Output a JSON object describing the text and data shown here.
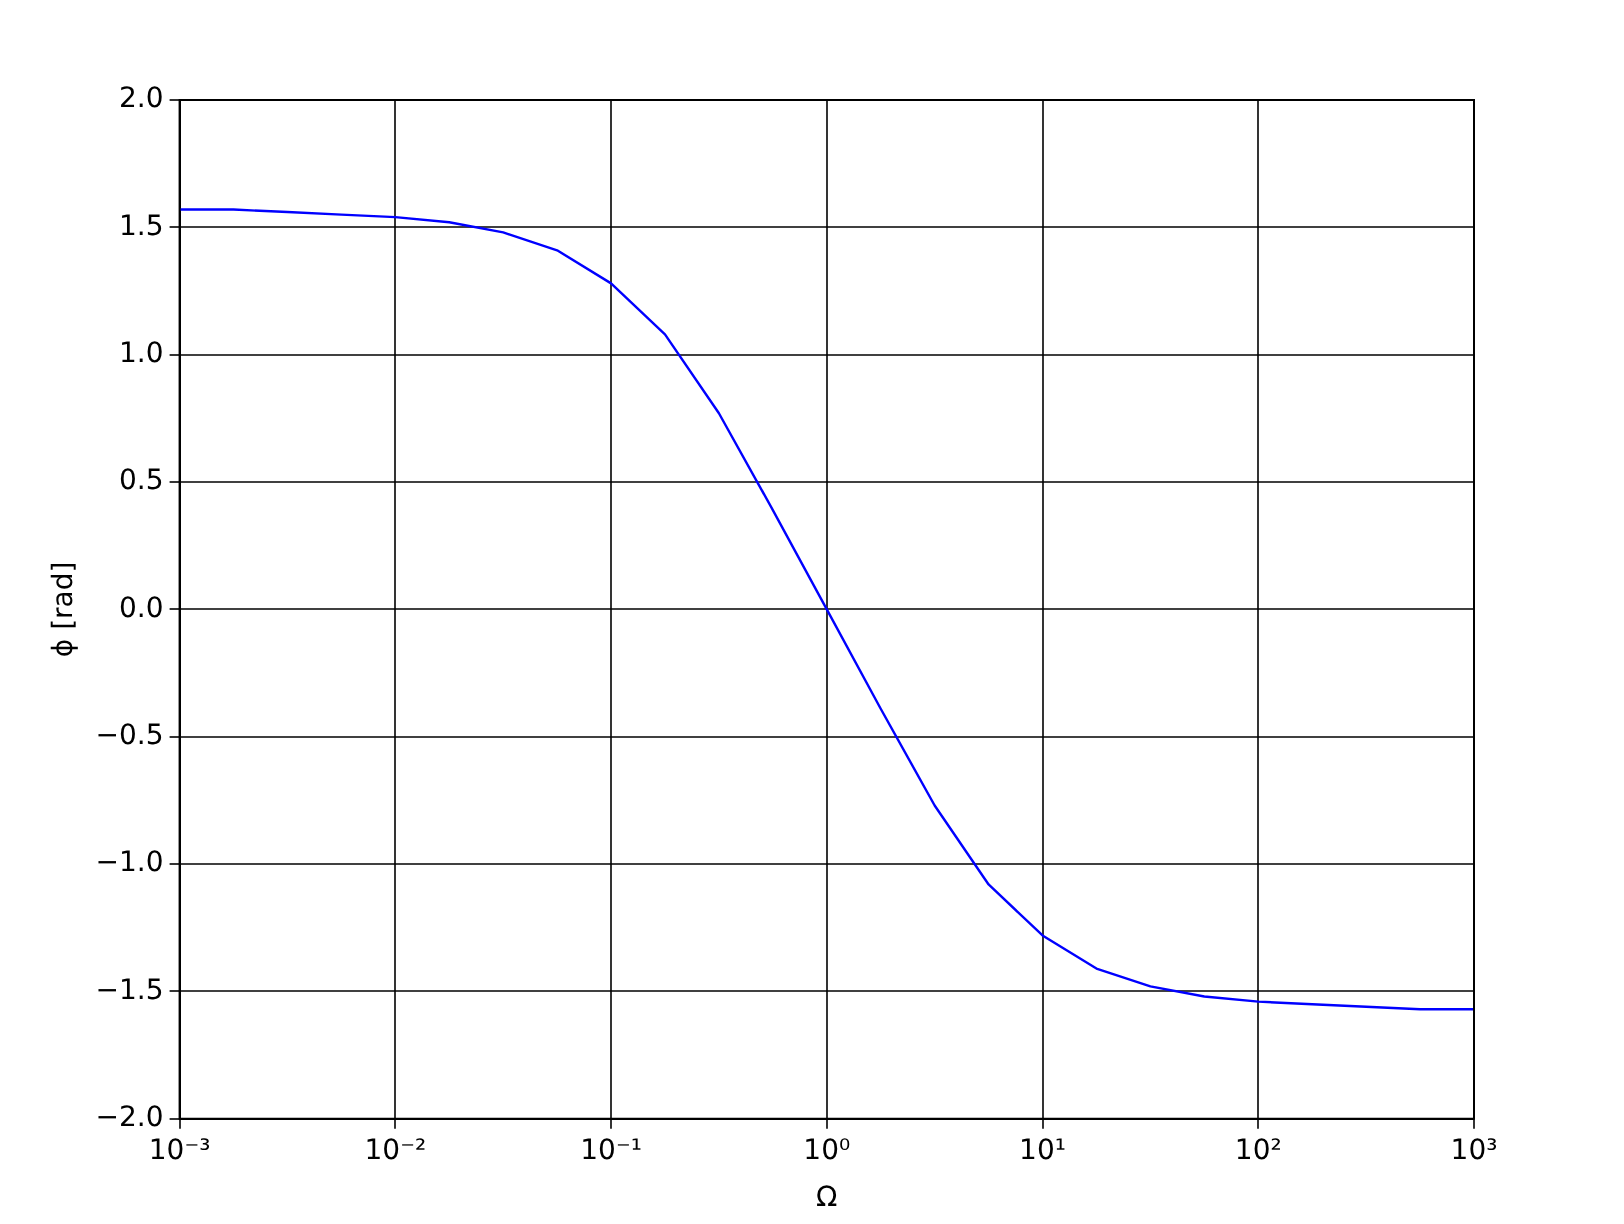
{
  "chart_data": {
    "type": "line",
    "xlabel": "Ω",
    "ylabel": "ϕ [rad]",
    "x": [
      0.001,
      0.001778,
      0.003162,
      0.005623,
      0.01,
      0.01778,
      0.03162,
      0.05623,
      0.1,
      0.1778,
      0.3162,
      0.5623,
      1,
      1.778,
      3.162,
      5.623,
      10,
      17.78,
      31.62,
      56.23,
      100,
      177.8,
      316.2,
      562.3,
      1000
    ],
    "series": [
      {
        "color": "#0000ff",
        "values": [
          1.57,
          1.57,
          1.56,
          1.55,
          1.54,
          1.52,
          1.48,
          1.41,
          1.28,
          1.08,
          0.77,
          0.39,
          0,
          -0.39,
          -0.77,
          -1.08,
          -1.28,
          -1.41,
          -1.48,
          -1.52,
          -1.54,
          -1.55,
          -1.56,
          -1.57,
          -1.57
        ]
      }
    ],
    "log": "x",
    "xlim": [
      0.001,
      1000
    ],
    "xticks": [
      {
        "value": 0.001,
        "label": "10⁻³"
      },
      {
        "value": 0.01,
        "label": "10⁻²"
      },
      {
        "value": 0.1,
        "label": "10⁻¹"
      },
      {
        "value": 1,
        "label": "10⁰"
      },
      {
        "value": 10,
        "label": "10¹"
      },
      {
        "value": 100,
        "label": "10²"
      },
      {
        "value": 1000,
        "label": "10³"
      }
    ],
    "ylim": [
      -2,
      2
    ],
    "yticks": [
      {
        "value": -2,
        "label": "−2.0"
      },
      {
        "value": -1.5,
        "label": "−1.5"
      },
      {
        "value": -1,
        "label": "−1.0"
      },
      {
        "value": -0.5,
        "label": "−0.5"
      },
      {
        "value": 0,
        "label": "0.0"
      },
      {
        "value": 0.5,
        "label": "0.5"
      },
      {
        "value": 1,
        "label": "1.0"
      },
      {
        "value": 1.5,
        "label": "1.5"
      },
      {
        "value": 2,
        "label": "2.0"
      }
    ],
    "grid": true,
    "marker": "none",
    "line_style": "solid",
    "legend": false
  }
}
